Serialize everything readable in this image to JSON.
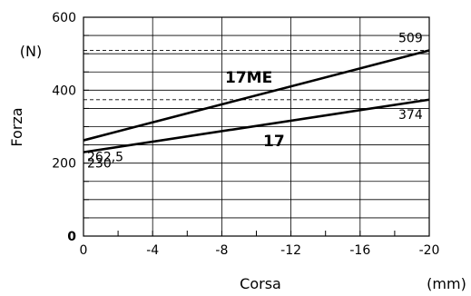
{
  "chart_data": {
    "type": "line",
    "xlabel": "Corsa",
    "xunit": "(mm)",
    "ylabel": "Forza",
    "yunit": "(N)",
    "xlim": [
      0,
      -20
    ],
    "ylim": [
      0,
      600
    ],
    "xticks": [
      0,
      -4,
      -8,
      -12,
      -16,
      -20
    ],
    "xtick_labels": [
      "0",
      "-4",
      "-8",
      "-12",
      "-16",
      "-20"
    ],
    "yticks": [
      0,
      200,
      400,
      600
    ],
    "ytick_labels": [
      "0",
      "200",
      "400",
      "600"
    ],
    "grid": true,
    "series": [
      {
        "name": "17ME",
        "x": [
          0,
          -20
        ],
        "y": [
          262.5,
          509
        ]
      },
      {
        "name": "17",
        "x": [
          0,
          -20
        ],
        "y": [
          230,
          374
        ]
      }
    ],
    "annotations": [
      {
        "text": "509",
        "x": -20,
        "y": 509
      },
      {
        "text": "262,5",
        "x": 0,
        "y": 262.5
      },
      {
        "text": "374",
        "x": -20,
        "y": 374
      },
      {
        "text": "230",
        "x": 0,
        "y": 230
      }
    ],
    "reference_lines": [
      {
        "y": 509,
        "style": "dashed"
      },
      {
        "y": 374,
        "style": "dashed"
      }
    ]
  }
}
